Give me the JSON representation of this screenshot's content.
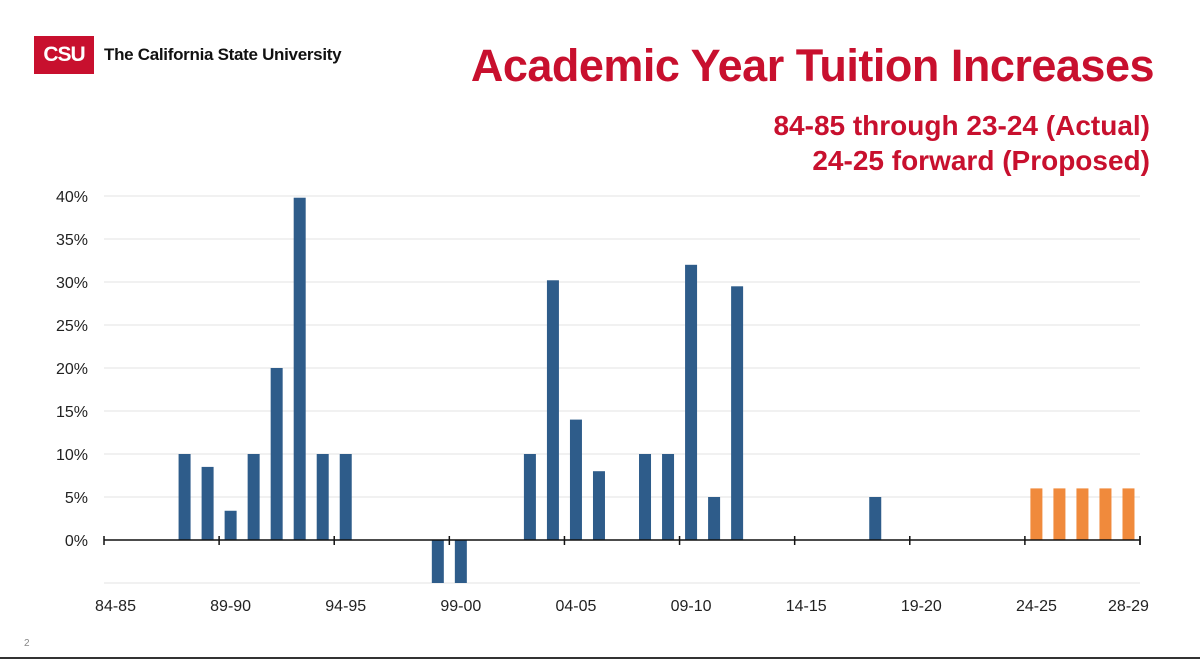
{
  "header": {
    "logo_mark": "CSU",
    "logo_text": "The California State University",
    "brand_color": "#c8102e"
  },
  "chart_data": {
    "type": "bar",
    "title": "Academic Year Tuition Increases",
    "subtitle_lines": [
      "84-85 through 23-24 (Actual)",
      "24-25 forward (Proposed)"
    ],
    "xlabel": "",
    "ylabel": "",
    "ylim": [
      -0.05,
      0.4
    ],
    "yticks": [
      {
        "value": 0.4,
        "label": "40%"
      },
      {
        "value": 0.35,
        "label": "35%"
      },
      {
        "value": 0.3,
        "label": "30%"
      },
      {
        "value": 0.25,
        "label": "25%"
      },
      {
        "value": 0.2,
        "label": "20%"
      },
      {
        "value": 0.15,
        "label": "15%"
      },
      {
        "value": 0.1,
        "label": "10%"
      },
      {
        "value": 0.05,
        "label": "5%"
      },
      {
        "value": 0.0,
        "label": "0%"
      }
    ],
    "grid": true,
    "legend": "none",
    "categories": [
      "84-85",
      "85-86",
      "86-87",
      "87-88",
      "88-89",
      "89-90",
      "90-91",
      "91-92",
      "92-93",
      "93-94",
      "94-95",
      "95-96",
      "96-97",
      "97-98",
      "98-99",
      "99-00",
      "00-01",
      "01-02",
      "02-03",
      "03-04",
      "04-05",
      "05-06",
      "06-07",
      "07-08",
      "08-09",
      "09-10",
      "10-11",
      "11-12",
      "12-13",
      "13-14",
      "14-15",
      "15-16",
      "16-17",
      "17-18",
      "18-19",
      "19-20",
      "20-21",
      "21-22",
      "22-23",
      "23-24",
      "24-25",
      "25-26",
      "26-27",
      "27-28",
      "28-29"
    ],
    "xtick_labels": [
      "84-85",
      "89-90",
      "94-95",
      "99-00",
      "04-05",
      "09-10",
      "14-15",
      "19-20",
      "24-25",
      "28-29"
    ],
    "series": [
      {
        "color": "#2e5c8a",
        "values": [
          0,
          0,
          0,
          0.1,
          0.085,
          0.034,
          0.1,
          0.2,
          0.398,
          0.1,
          0.1,
          0,
          0,
          0,
          -0.05,
          -0.05,
          0,
          0,
          0.1,
          0.302,
          0.14,
          0.08,
          0,
          0.1,
          0.1,
          0.32,
          0.05,
          0.295,
          0,
          0,
          0,
          0,
          0,
          0.05,
          0,
          0,
          0,
          0,
          0,
          0,
          null,
          null,
          null,
          null,
          null
        ]
      },
      {
        "color": "#f08a3c",
        "values": [
          null,
          null,
          null,
          null,
          null,
          null,
          null,
          null,
          null,
          null,
          null,
          null,
          null,
          null,
          null,
          null,
          null,
          null,
          null,
          null,
          null,
          null,
          null,
          null,
          null,
          null,
          null,
          null,
          null,
          null,
          null,
          null,
          null,
          null,
          null,
          null,
          null,
          null,
          null,
          null,
          0.06,
          0.06,
          0.06,
          0.06,
          0.06
        ]
      }
    ]
  },
  "footer": {
    "page_number": "2"
  }
}
